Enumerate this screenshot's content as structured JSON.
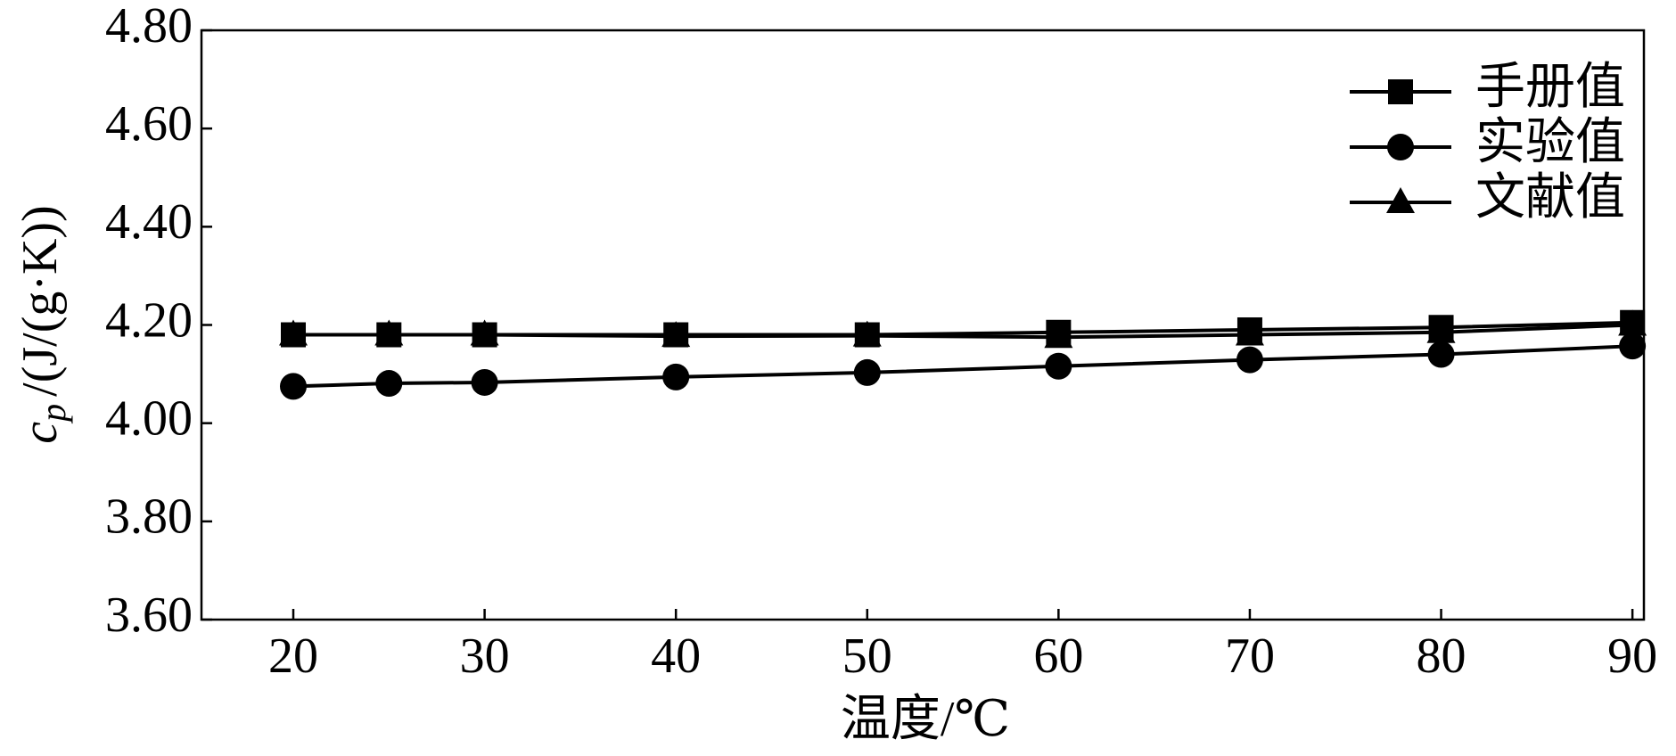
{
  "chart_data": {
    "type": "line",
    "x_label": "温度/℃",
    "y_label": {
      "symbol": "c",
      "subscript": "p",
      "unit": "/(J/(g·K))"
    },
    "x": [
      20,
      25,
      30,
      40,
      50,
      60,
      70,
      80,
      90
    ],
    "series": [
      {
        "name": "手册值",
        "color": "#000000",
        "marker": "square",
        "values": [
          4.18,
          4.18,
          4.18,
          4.18,
          4.18,
          4.185,
          4.19,
          4.195,
          4.205
        ]
      },
      {
        "name": "实验值",
        "color": "#000000",
        "marker": "circle",
        "values": [
          4.075,
          4.081,
          4.083,
          4.094,
          4.103,
          4.116,
          4.129,
          4.14,
          4.157
        ]
      },
      {
        "name": "文献值",
        "color": "#000000",
        "marker": "triangle",
        "values": [
          4.18,
          4.18,
          4.18,
          4.177,
          4.178,
          4.175,
          4.18,
          4.185,
          4.2
        ]
      }
    ],
    "xlim": [
      15.2,
      90.6
    ],
    "xticks": [
      20,
      30,
      40,
      50,
      60,
      70,
      80,
      90
    ],
    "ylim": [
      3.6,
      4.8
    ],
    "yticks": [
      {
        "value": 3.6,
        "label": "3.60"
      },
      {
        "value": 3.8,
        "label": "3.80"
      },
      {
        "value": 4.0,
        "label": "4.00"
      },
      {
        "value": 4.2,
        "label": "4.20"
      },
      {
        "value": 4.4,
        "label": "4.40"
      },
      {
        "value": 4.6,
        "label": "4.60"
      },
      {
        "value": 4.8,
        "label": "4.80"
      }
    ],
    "legend": "top-right",
    "grid": false
  }
}
